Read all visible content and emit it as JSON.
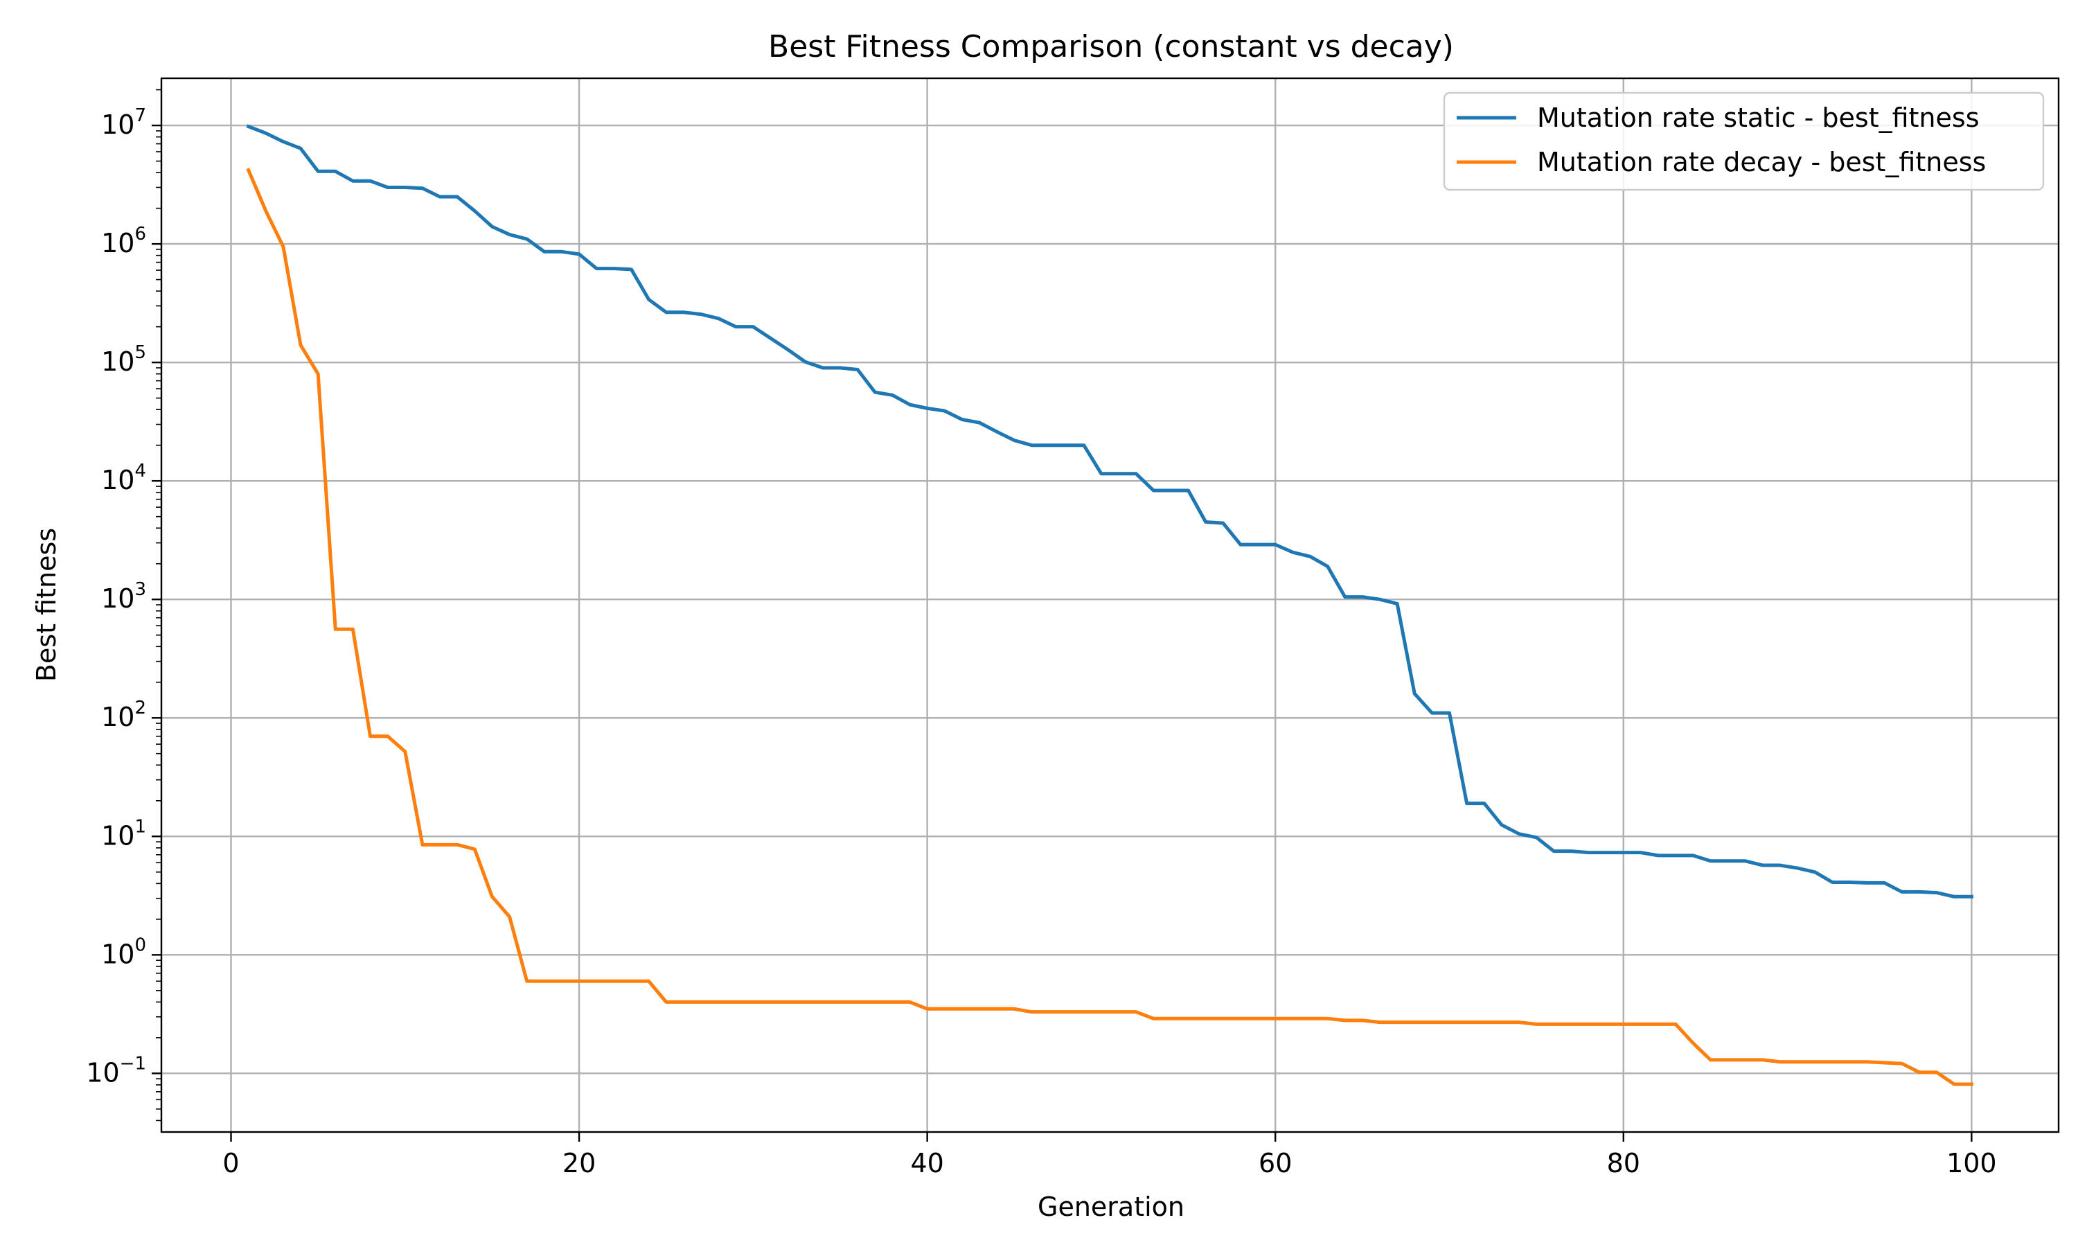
{
  "chart_data": {
    "type": "line",
    "title": "Best Fitness Comparison (constant vs decay)",
    "xlabel": "Generation",
    "ylabel": "Best fitness",
    "yscale": "log",
    "xlim": [
      -4,
      105
    ],
    "ylim": [
      0.032,
      25000000
    ],
    "x_ticks": [
      0,
      20,
      40,
      60,
      80,
      100
    ],
    "y_tick_exponents": [
      -1,
      0,
      1,
      2,
      3,
      4,
      5,
      6,
      7
    ],
    "y_tick_base": "10",
    "grid": true,
    "legend_position": "top-right",
    "x": [
      1,
      2,
      3,
      4,
      5,
      6,
      7,
      8,
      9,
      10,
      11,
      12,
      13,
      14,
      15,
      16,
      17,
      18,
      19,
      20,
      21,
      22,
      23,
      24,
      25,
      26,
      27,
      28,
      29,
      30,
      31,
      32,
      33,
      34,
      35,
      36,
      37,
      38,
      39,
      40,
      41,
      42,
      43,
      44,
      45,
      46,
      47,
      48,
      49,
      50,
      51,
      52,
      53,
      54,
      55,
      56,
      57,
      58,
      59,
      60,
      61,
      62,
      63,
      64,
      65,
      66,
      67,
      68,
      69,
      70,
      71,
      72,
      73,
      74,
      75,
      76,
      77,
      78,
      79,
      80,
      81,
      82,
      83,
      84,
      85,
      86,
      87,
      88,
      89,
      90,
      91,
      92,
      93,
      94,
      95,
      96,
      97,
      98,
      99,
      100
    ],
    "series": [
      {
        "name": "Mutation rate static - best_fitness",
        "color": "#1f77b4",
        "values": [
          9800000,
          8600000,
          7300000,
          6400000,
          4100000,
          4100000,
          3400000,
          3400000,
          3000000,
          3000000,
          2950000,
          2500000,
          2500000,
          1900000,
          1400000,
          1200000,
          1100000,
          860000,
          860000,
          820000,
          620000,
          620000,
          610000,
          340000,
          265000,
          265000,
          255000,
          235000,
          200000,
          200000,
          160000,
          128000,
          101000,
          90000,
          90000,
          87000,
          56000,
          53000,
          44000,
          41000,
          39000,
          33000,
          31000,
          26000,
          22000,
          20000,
          20000,
          20000,
          20000,
          11500,
          11500,
          11500,
          8300,
          8300,
          8300,
          4500,
          4400,
          2900,
          2900,
          2900,
          2500,
          2300,
          1900,
          1050,
          1050,
          1000,
          920,
          160,
          110,
          110,
          19,
          19,
          12.5,
          10.5,
          9.8,
          7.5,
          7.5,
          7.3,
          7.3,
          7.3,
          7.3,
          6.9,
          6.9,
          6.9,
          6.2,
          6.2,
          6.2,
          5.7,
          5.7,
          5.4,
          5.0,
          4.1,
          4.1,
          4.05,
          4.05,
          3.4,
          3.4,
          3.35,
          3.1,
          3.1
        ]
      },
      {
        "name": "Mutation rate decay - best_fitness",
        "color": "#ff7f0e",
        "values": [
          4200000,
          1900000,
          950000,
          140000,
          80000,
          560,
          560,
          70,
          70,
          52,
          8.5,
          8.5,
          8.5,
          7.8,
          3.1,
          2.1,
          0.6,
          0.6,
          0.6,
          0.6,
          0.6,
          0.6,
          0.6,
          0.6,
          0.4,
          0.4,
          0.4,
          0.4,
          0.4,
          0.4,
          0.4,
          0.4,
          0.4,
          0.4,
          0.4,
          0.4,
          0.4,
          0.4,
          0.4,
          0.35,
          0.35,
          0.35,
          0.35,
          0.35,
          0.35,
          0.33,
          0.33,
          0.33,
          0.33,
          0.33,
          0.33,
          0.33,
          0.29,
          0.29,
          0.29,
          0.29,
          0.29,
          0.29,
          0.29,
          0.29,
          0.29,
          0.29,
          0.29,
          0.28,
          0.28,
          0.27,
          0.27,
          0.27,
          0.27,
          0.27,
          0.27,
          0.27,
          0.27,
          0.27,
          0.26,
          0.26,
          0.26,
          0.26,
          0.26,
          0.26,
          0.26,
          0.26,
          0.26,
          0.18,
          0.13,
          0.13,
          0.13,
          0.13,
          0.125,
          0.125,
          0.125,
          0.125,
          0.125,
          0.125,
          0.123,
          0.121,
          0.102,
          0.102,
          0.081,
          0.081
        ]
      }
    ]
  }
}
